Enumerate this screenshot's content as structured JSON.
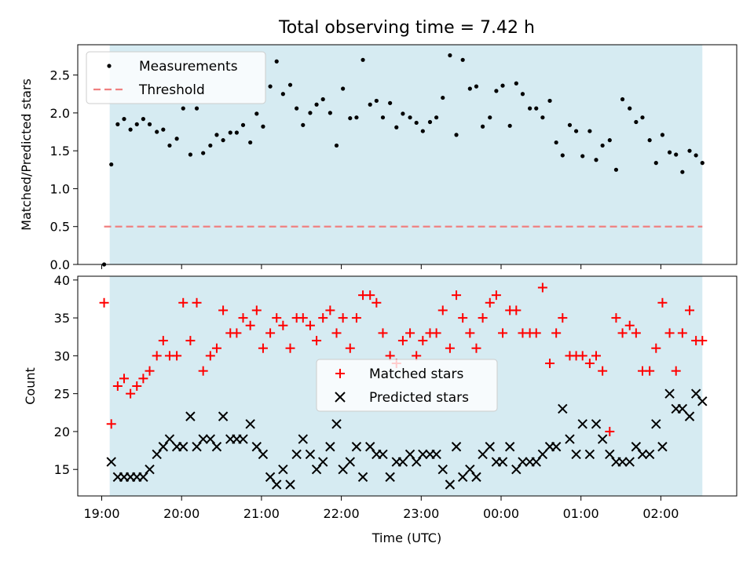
{
  "title": "Total observing time = 7.42 h",
  "colors": {
    "shade": "#add8e6",
    "threshold": "#f08080",
    "matched": "#ff0000",
    "predicted": "#000000"
  },
  "chart_data": [
    {
      "type": "scatter",
      "ylabel": "Matched/Predicted stars",
      "xlabel": "",
      "ylim": [
        0,
        2.9
      ],
      "yticks": [
        "0.0",
        "0.5",
        "1.0",
        "1.5",
        "2.0",
        "2.5"
      ],
      "x_unit": "hours since 19:00 UTC",
      "xlim": [
        -0.3,
        7.95
      ],
      "shaded_span": [
        0.1,
        7.52
      ],
      "legend": {
        "position": "upper-left",
        "entries": [
          "Measurements",
          "Threshold"
        ]
      },
      "threshold": {
        "name": "Threshold",
        "value": 0.5,
        "x_range": [
          0.03,
          7.52
        ]
      },
      "series": [
        {
          "name": "Measurements",
          "x": [
            0.03,
            0.12,
            0.2,
            0.28,
            0.36,
            0.44,
            0.52,
            0.6,
            0.69,
            0.77,
            0.85,
            0.94,
            1.02,
            1.11,
            1.19,
            1.27,
            1.36,
            1.44,
            1.52,
            1.61,
            1.69,
            1.77,
            1.86,
            1.94,
            2.02,
            2.11,
            2.19,
            2.27,
            2.36,
            2.44,
            2.52,
            2.61,
            2.69,
            2.77,
            2.86,
            2.94,
            3.02,
            3.11,
            3.19,
            3.27,
            3.36,
            3.44,
            3.52,
            3.61,
            3.69,
            3.77,
            3.86,
            3.94,
            4.02,
            4.11,
            4.19,
            4.27,
            4.36,
            4.44,
            4.52,
            4.61,
            4.69,
            4.77,
            4.86,
            4.94,
            5.02,
            5.11,
            5.19,
            5.27,
            5.36,
            5.44,
            5.52,
            5.61,
            5.69,
            5.77,
            5.86,
            5.94,
            6.02,
            6.11,
            6.19,
            6.27,
            6.36,
            6.44,
            6.52,
            6.61,
            6.69,
            6.77,
            6.86,
            6.94,
            7.02,
            7.11,
            7.19,
            7.27,
            7.36,
            7.44,
            7.52
          ],
          "y": [
            0.0,
            1.32,
            1.85,
            1.92,
            1.78,
            1.85,
            1.92,
            1.85,
            1.75,
            1.78,
            1.57,
            1.66,
            2.06,
            1.45,
            2.06,
            1.47,
            1.57,
            1.71,
            1.64,
            1.74,
            1.74,
            1.84,
            1.61,
            1.99,
            1.82,
            2.35,
            2.68,
            2.25,
            2.37,
            2.06,
            1.84,
            2.0,
            2.11,
            2.18,
            2.0,
            1.57,
            2.32,
            1.93,
            1.94,
            2.7,
            2.11,
            2.16,
            1.94,
            2.13,
            1.81,
            1.99,
            1.94,
            1.87,
            1.76,
            1.88,
            1.94,
            2.2,
            2.76,
            1.71,
            2.7,
            2.32,
            2.35,
            1.82,
            1.94,
            2.29,
            2.36,
            1.83,
            2.39,
            2.25,
            2.06,
            2.06,
            1.94,
            2.16,
            1.61,
            1.44,
            1.84,
            1.76,
            1.43,
            1.76,
            1.38,
            1.57,
            1.64,
            1.25,
            2.18,
            2.06,
            1.88,
            1.94,
            1.64,
            1.34,
            1.71,
            1.48,
            1.45,
            1.22,
            1.5,
            1.44,
            1.34
          ]
        }
      ]
    },
    {
      "type": "scatter",
      "ylabel": "Count",
      "xlabel": "Time (UTC)",
      "ylim": [
        11.5,
        40.5
      ],
      "yticks": [
        "15",
        "20",
        "25",
        "30",
        "35",
        "40"
      ],
      "x_unit": "hours since 19:00 UTC",
      "xlim": [
        -0.3,
        7.95
      ],
      "xticks": [
        "19:00",
        "20:00",
        "21:00",
        "22:00",
        "23:00",
        "00:00",
        "01:00",
        "02:00"
      ],
      "shaded_span": [
        0.1,
        7.52
      ],
      "legend": {
        "position": "center",
        "entries": [
          "Matched stars",
          "Predicted stars"
        ]
      },
      "series": [
        {
          "name": "Matched stars",
          "x": [
            0.03,
            0.12,
            0.2,
            0.28,
            0.36,
            0.44,
            0.52,
            0.6,
            0.69,
            0.77,
            0.85,
            0.94,
            1.02,
            1.11,
            1.19,
            1.27,
            1.36,
            1.44,
            1.52,
            1.61,
            1.69,
            1.77,
            1.86,
            1.94,
            2.02,
            2.11,
            2.19,
            2.27,
            2.36,
            2.44,
            2.52,
            2.61,
            2.69,
            2.77,
            2.86,
            2.94,
            3.02,
            3.11,
            3.19,
            3.27,
            3.36,
            3.44,
            3.52,
            3.61,
            3.69,
            3.77,
            3.86,
            3.94,
            4.02,
            4.11,
            4.19,
            4.27,
            4.36,
            4.44,
            4.52,
            4.61,
            4.69,
            4.77,
            4.86,
            4.94,
            5.02,
            5.11,
            5.19,
            5.27,
            5.36,
            5.44,
            5.52,
            5.61,
            5.69,
            5.77,
            5.86,
            5.94,
            6.02,
            6.11,
            6.19,
            6.27,
            6.36,
            6.44,
            6.52,
            6.61,
            6.69,
            6.77,
            6.86,
            6.94,
            7.02,
            7.11,
            7.19,
            7.27,
            7.36,
            7.44,
            7.52
          ],
          "y": [
            37,
            21,
            26,
            27,
            25,
            26,
            27,
            28,
            30,
            32,
            30,
            30,
            37,
            32,
            37,
            28,
            30,
            31,
            36,
            33,
            33,
            35,
            34,
            36,
            31,
            33,
            35,
            34,
            31,
            35,
            35,
            34,
            32,
            35,
            36,
            33,
            35,
            31,
            35,
            38,
            38,
            37,
            33,
            30,
            29,
            32,
            33,
            30,
            32,
            33,
            33,
            36,
            31,
            38,
            35,
            33,
            31,
            35,
            37,
            38,
            33,
            36,
            36,
            33,
            33,
            33,
            39,
            29,
            33,
            35,
            30,
            30,
            30,
            29,
            30,
            28,
            20,
            35,
            33,
            34,
            33,
            28,
            28,
            31,
            37,
            33,
            28,
            33,
            36,
            32,
            32
          ]
        },
        {
          "name": "Predicted stars",
          "x": [
            0.12,
            0.2,
            0.28,
            0.36,
            0.44,
            0.52,
            0.6,
            0.69,
            0.77,
            0.85,
            0.94,
            1.02,
            1.11,
            1.19,
            1.27,
            1.36,
            1.44,
            1.52,
            1.61,
            1.69,
            1.77,
            1.86,
            1.94,
            2.02,
            2.11,
            2.19,
            2.27,
            2.36,
            2.44,
            2.52,
            2.61,
            2.69,
            2.77,
            2.86,
            2.94,
            3.02,
            3.11,
            3.19,
            3.27,
            3.36,
            3.44,
            3.52,
            3.61,
            3.69,
            3.77,
            3.86,
            3.94,
            4.02,
            4.11,
            4.19,
            4.27,
            4.36,
            4.44,
            4.52,
            4.61,
            4.69,
            4.77,
            4.86,
            4.94,
            5.02,
            5.11,
            5.19,
            5.27,
            5.36,
            5.44,
            5.52,
            5.61,
            5.69,
            5.77,
            5.86,
            5.94,
            6.02,
            6.11,
            6.19,
            6.27,
            6.36,
            6.44,
            6.52,
            6.61,
            6.69,
            6.77,
            6.86,
            6.94,
            7.02,
            7.11,
            7.19,
            7.27,
            7.36,
            7.44,
            7.52
          ],
          "y": [
            16,
            14,
            14,
            14,
            14,
            14,
            15,
            17,
            18,
            19,
            18,
            18,
            22,
            18,
            19,
            19,
            18,
            22,
            19,
            19,
            19,
            21,
            18,
            17,
            14,
            13,
            15,
            13,
            17,
            19,
            17,
            15,
            16,
            18,
            21,
            15,
            16,
            18,
            14,
            18,
            17,
            17,
            14,
            16,
            16,
            17,
            16,
            17,
            17,
            17,
            15,
            13,
            18,
            14,
            15,
            14,
            17,
            18,
            16,
            16,
            18,
            15,
            16,
            16,
            16,
            17,
            18,
            18,
            23,
            19,
            17,
            21,
            17,
            21,
            19,
            17,
            16,
            16,
            16,
            18,
            17,
            17,
            21,
            18,
            25,
            23,
            23,
            22,
            25,
            24
          ]
        }
      ]
    }
  ]
}
